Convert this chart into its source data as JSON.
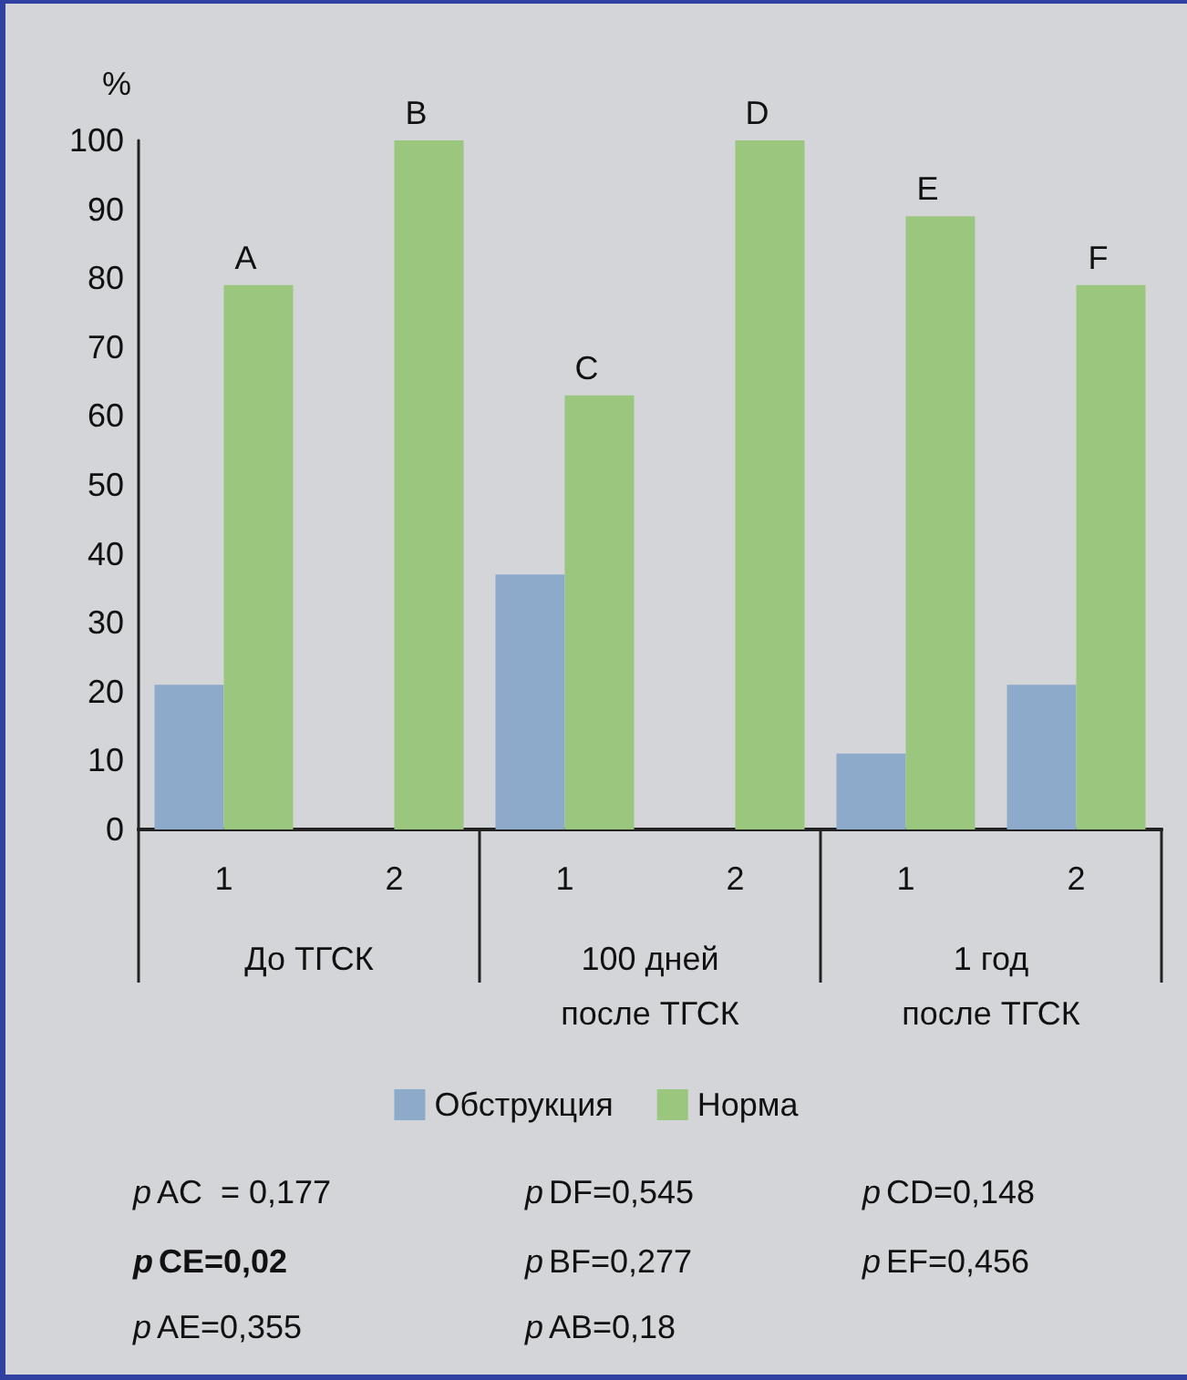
{
  "chart_data": {
    "type": "bar",
    "ylabel": "%",
    "categories": [
      "1",
      "2",
      "1",
      "2",
      "1",
      "2"
    ],
    "series": [
      {
        "name": "Обструкция",
        "color": "#8eaacb",
        "values": [
          21,
          0,
          37,
          0,
          11,
          21
        ]
      },
      {
        "name": "Норма",
        "color": "#9bc67e",
        "values": [
          79,
          100,
          63,
          100,
          89,
          79
        ]
      }
    ],
    "ylim": [
      0,
      100
    ],
    "yticks": [
      0,
      10,
      20,
      30,
      40,
      50,
      60,
      70,
      80,
      90,
      100
    ],
    "grid": false,
    "legend": "bottom",
    "annotations": [
      "A",
      "B",
      "C",
      "D",
      "E",
      "F",
      "До ТГСК",
      "100 дней\nпосле ТГСК",
      "1 год\nпосле ТГСК",
      "pAC  = 0,177",
      "pCE=0,02",
      "pAE=0,355",
      "pDF=0,545",
      "pBF=0,277",
      "pAB=0,18",
      "pCD=0,148",
      "pEF=0,456"
    ]
  }
}
